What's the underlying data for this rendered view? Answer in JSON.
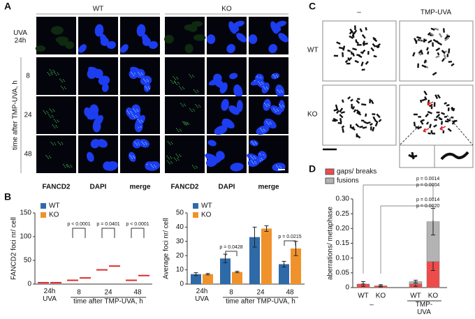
{
  "panel_labels": [
    "A",
    "B",
    "C",
    "D"
  ],
  "panel_a": {
    "genotypes": [
      "WT",
      "KO"
    ],
    "uva_label": "UVA 24h",
    "time_points": [
      "8",
      "24",
      "48"
    ],
    "time_axis_label": "time after TMP-UVA, h",
    "channels": [
      "FANCD2",
      "DAPI",
      "merge"
    ]
  },
  "panel_c": {
    "conditions": [
      "–",
      "TMP-UVA"
    ],
    "genotypes": [
      "WT",
      "KO"
    ]
  },
  "chart_data": [
    {
      "type": "strip",
      "ylabel": "FANCD2 foci nr/ cell",
      "xlabel": "time after TMP-UVA, h",
      "categories": [
        "24h UVA",
        "8",
        "24",
        "48"
      ],
      "series": [
        {
          "name": "WT",
          "color": "#2f6aa8",
          "values": [
            3,
            8,
            30,
            8
          ]
        },
        {
          "name": "KO",
          "color": "#f0922b",
          "values": [
            3,
            13,
            38,
            18
          ]
        }
      ],
      "median_color": "#e02b2b",
      "ylim": [
        0,
        150
      ],
      "yticks": [
        0,
        50,
        100,
        150
      ],
      "annotations": [
        "p < 0.0001",
        "p = 0.0401",
        "p < 0.0001"
      ]
    },
    {
      "type": "bar",
      "ylabel": "Average foci nr/ cell",
      "xlabel": "time after TMP-UVA, h",
      "categories": [
        "24h UVA",
        "8",
        "24",
        "48"
      ],
      "series": [
        {
          "name": "WT",
          "color": "#2f6aa8",
          "values": [
            7,
            18,
            33,
            14
          ],
          "errors": [
            1,
            3,
            7,
            2
          ]
        },
        {
          "name": "KO",
          "color": "#f0922b",
          "values": [
            7,
            8.5,
            39,
            25
          ],
          "errors": [
            0.5,
            0.5,
            2,
            5
          ]
        }
      ],
      "ylim": [
        0,
        50
      ],
      "yticks": [
        0,
        10,
        20,
        30,
        40,
        50
      ],
      "annotations": [
        "p = 0.0428",
        "p = 0.0215"
      ]
    },
    {
      "type": "stacked_bar",
      "ylabel": "aberrations/ metaphase",
      "categories": [
        "WT",
        "KO",
        "WT",
        "KO"
      ],
      "groups": [
        "–",
        "TMP-UVA"
      ],
      "series": [
        {
          "name": "gaps/ breaks",
          "color": "#ee4b4b",
          "values": [
            0.012,
            0.006,
            0.012,
            0.088
          ],
          "errors": [
            0.008,
            0.004,
            0.008,
            0.03
          ]
        },
        {
          "name": "fusions",
          "color": "#b3b3b3",
          "values": [
            0,
            0,
            0.008,
            0.135
          ],
          "errors": [
            0,
            0,
            0.005,
            0.045
          ]
        }
      ],
      "ylim": [
        0,
        0.3
      ],
      "yticks": [
        0,
        0.05,
        {
          "value": 0.1,
          "label": "0.10"
        },
        0.15,
        {
          "value": 0.2,
          "label": "0.20"
        },
        0.25,
        {
          "value": 0.3,
          "label": "0.30"
        }
      ],
      "annotations": [
        {
          "text": "p = 0.0014",
          "color": "#ee4b4b"
        },
        {
          "text": "p = 0.0004",
          "color": "#888888"
        },
        {
          "text": "p = 0.0014",
          "color": "#ee4b4b"
        },
        {
          "text": "p = 0.0020",
          "color": "#888888"
        }
      ]
    }
  ]
}
